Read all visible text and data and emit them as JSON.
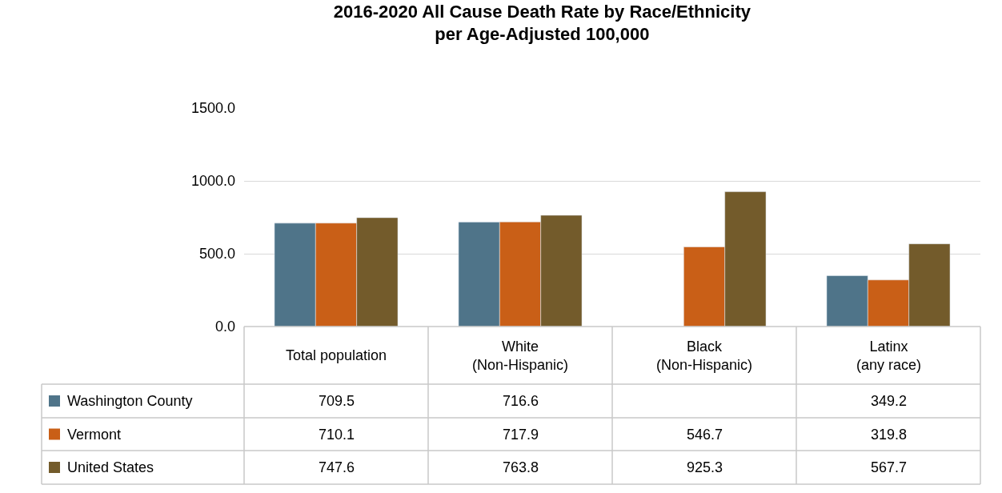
{
  "chart_data": {
    "type": "bar",
    "title": "2016-2020 All Cause Death Rate by Race/Ethnicity\nper Age-Adjusted 100,000",
    "categories": [
      "Total population",
      "White\n(Non-Hispanic)",
      "Black\n(Non-Hispanic)",
      "Latinx\n(any race)"
    ],
    "series": [
      {
        "name": "Washington County",
        "color": "#4f7489",
        "values": [
          709.5,
          716.6,
          null,
          349.2
        ]
      },
      {
        "name": "Vermont",
        "color": "#c95f17",
        "values": [
          710.1,
          717.9,
          546.7,
          319.8
        ]
      },
      {
        "name": "United States",
        "color": "#735b2b",
        "values": [
          747.6,
          763.8,
          925.3,
          567.7
        ]
      }
    ],
    "ylim": [
      0,
      1500
    ],
    "yticks": [
      {
        "value": 0,
        "label": "0.0"
      },
      {
        "value": 500,
        "label": "500.0"
      },
      {
        "value": 1000,
        "label": "1000.0"
      },
      {
        "value": 1500,
        "label": "1500.0"
      }
    ],
    "grid": "y",
    "legend": "bottom left",
    "data_labels": true
  }
}
